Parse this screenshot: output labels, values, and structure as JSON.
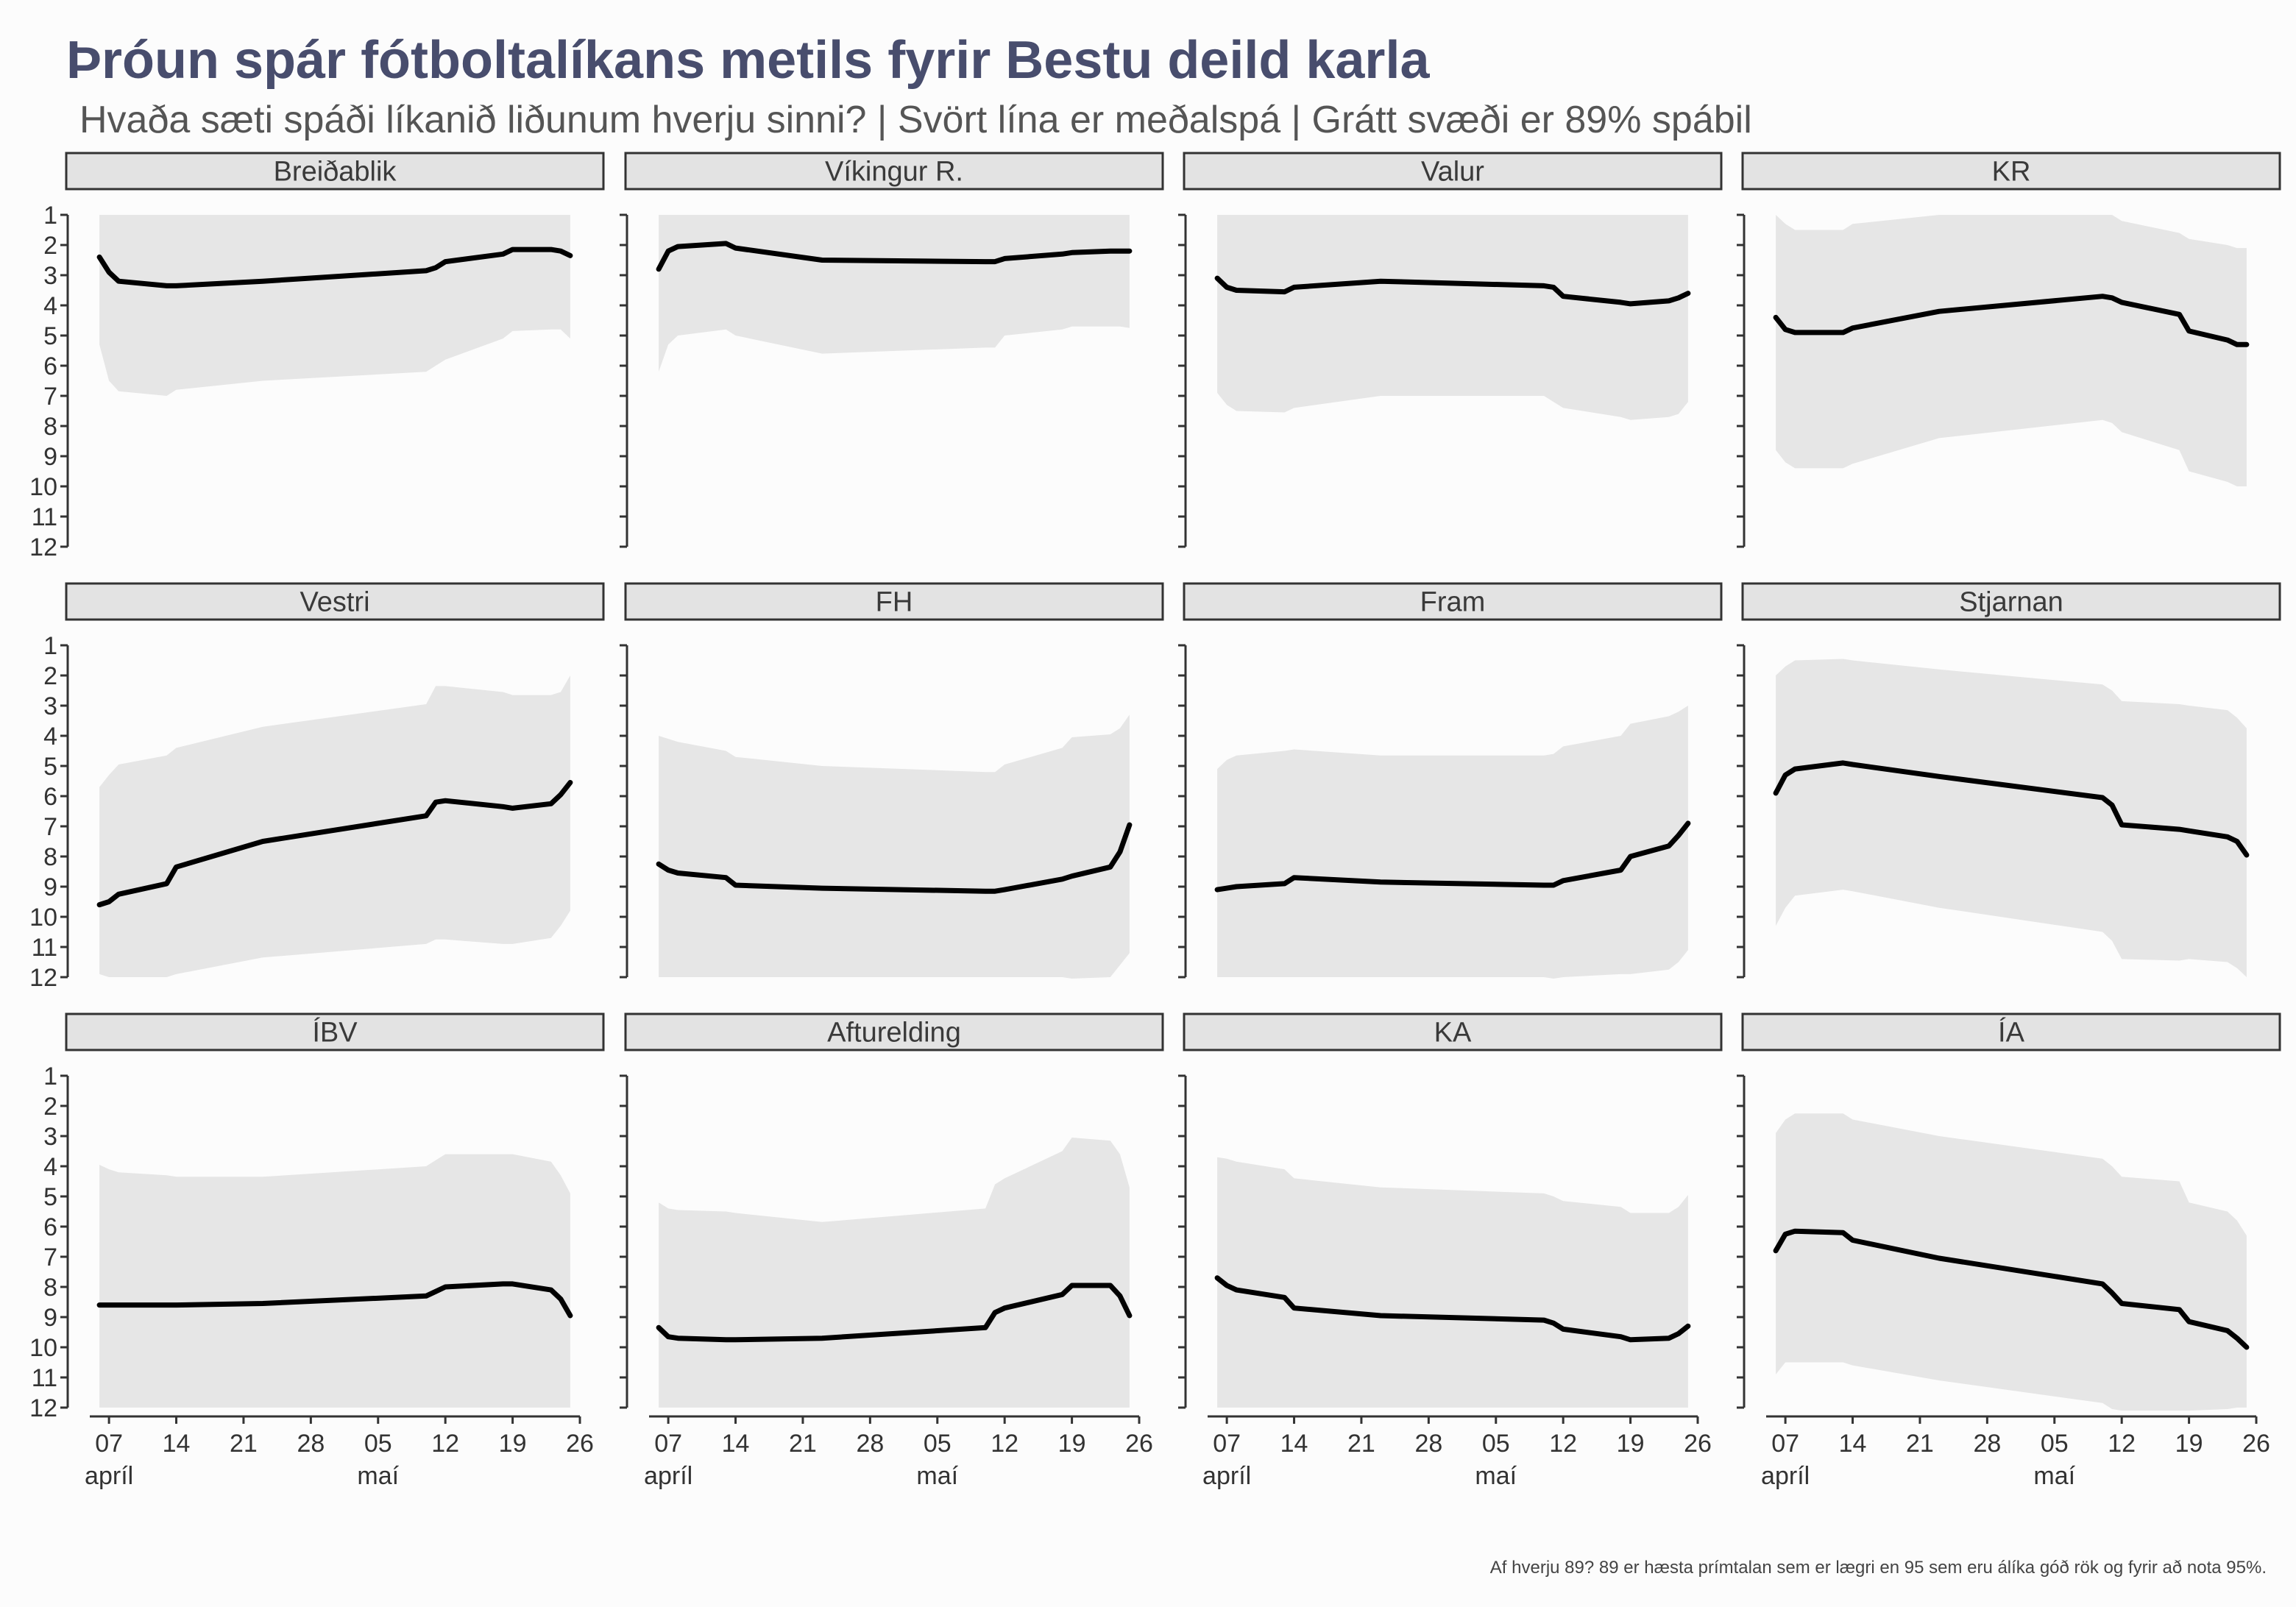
{
  "title": "Þróun spár fótboltalíkans metils fyrir Bestu deild karla",
  "subtitle": "Hvaða sæti spáði líkanið liðunum hverju sinni? | Svört lína er meðalspá | Grátt svæði er 89% spábil",
  "caption": "Af hverju 89? 89 er hæsta prímtalan sem er lægri en 95 sem eru álíka góð rök og fyrir að nota 95%.",
  "colors": {
    "band": "#e6e6e6",
    "line": "#000000",
    "title": "#484d6d",
    "strip": "#e3e3e3"
  },
  "chart_data": {
    "type": "line",
    "x_unit": "date (2024, days)",
    "y_axis": {
      "ticks": [
        "1",
        "2",
        "3",
        "4",
        "5",
        "6",
        "7",
        "8",
        "9",
        "10",
        "11",
        "12"
      ],
      "ylim": [
        12,
        1
      ],
      "reversed": true
    },
    "x_axis": {
      "xlim": [
        "2024-04-05",
        "2024-05-26"
      ],
      "ticks": [
        {
          "date": "2024-04-07",
          "label": "07"
        },
        {
          "date": "2024-04-14",
          "label": "14"
        },
        {
          "date": "2024-04-21",
          "label": "21"
        },
        {
          "date": "2024-04-28",
          "label": "28"
        },
        {
          "date": "2024-05-05",
          "label": "05"
        },
        {
          "date": "2024-05-12",
          "label": "12"
        },
        {
          "date": "2024-05-19",
          "label": "19"
        },
        {
          "date": "2024-05-26",
          "label": "26"
        }
      ],
      "month_labels": [
        {
          "date": "2024-04-07",
          "label": "apríl"
        },
        {
          "date": "2024-05-05",
          "label": "maí"
        }
      ]
    },
    "dates": [
      "2024-04-06",
      "2024-04-07",
      "2024-04-08",
      "2024-04-13",
      "2024-04-14",
      "2024-04-23",
      "2024-05-10",
      "2024-05-11",
      "2024-05-12",
      "2024-05-18",
      "2024-05-19",
      "2024-05-23",
      "2024-05-24",
      "2024-05-25"
    ],
    "panels": [
      {
        "team": "Breiðablik",
        "mean": [
          2.4,
          2.9,
          3.2,
          3.35,
          3.35,
          3.2,
          2.85,
          2.75,
          2.55,
          2.3,
          2.15,
          2.15,
          2.2,
          2.35
        ],
        "lower": [
          1,
          1,
          1,
          1,
          1,
          1,
          1,
          1,
          1,
          1,
          1,
          1,
          1,
          1
        ],
        "upper": [
          5.3,
          6.5,
          6.85,
          7.0,
          6.8,
          6.5,
          6.2,
          6.0,
          5.8,
          5.1,
          4.85,
          4.8,
          4.8,
          5.1
        ]
      },
      {
        "team": "Víkingur R.",
        "mean": [
          2.8,
          2.2,
          2.05,
          1.95,
          2.1,
          2.5,
          2.55,
          2.55,
          2.45,
          2.3,
          2.25,
          2.2,
          2.2,
          2.2
        ],
        "lower": [
          1,
          1,
          1,
          1,
          1,
          1,
          1,
          1,
          1,
          1,
          1,
          1,
          1,
          1
        ],
        "upper": [
          6.2,
          5.3,
          5.0,
          4.8,
          5.0,
          5.6,
          5.4,
          5.4,
          5.0,
          4.8,
          4.7,
          4.7,
          4.7,
          4.75
        ]
      },
      {
        "team": "Valur",
        "mean": [
          3.1,
          3.4,
          3.5,
          3.55,
          3.4,
          3.2,
          3.35,
          3.4,
          3.7,
          3.9,
          3.95,
          3.85,
          3.75,
          3.6
        ],
        "lower": [
          1,
          1,
          1,
          1,
          1,
          1,
          1,
          1,
          1,
          1,
          1,
          1,
          1,
          1
        ],
        "upper": [
          6.9,
          7.3,
          7.5,
          7.55,
          7.4,
          7.0,
          7.0,
          7.2,
          7.4,
          7.7,
          7.8,
          7.7,
          7.6,
          7.2
        ]
      },
      {
        "team": "KR",
        "mean": [
          4.4,
          4.8,
          4.9,
          4.9,
          4.75,
          4.2,
          3.7,
          3.75,
          3.9,
          4.3,
          4.85,
          5.15,
          5.3,
          5.3
        ],
        "lower": [
          1,
          1.3,
          1.5,
          1.5,
          1.3,
          1,
          1,
          1,
          1.2,
          1.6,
          1.8,
          2.0,
          2.1,
          2.1
        ],
        "upper": [
          8.8,
          9.2,
          9.4,
          9.4,
          9.25,
          8.4,
          7.8,
          7.9,
          8.2,
          8.8,
          9.5,
          9.85,
          10.0,
          10.0
        ]
      },
      {
        "team": "Vestri",
        "mean": [
          9.6,
          9.5,
          9.25,
          8.9,
          8.35,
          7.5,
          6.65,
          6.2,
          6.15,
          6.35,
          6.4,
          6.25,
          5.95,
          5.55
        ],
        "lower": [
          5.7,
          5.3,
          4.95,
          4.65,
          4.4,
          3.7,
          2.95,
          2.35,
          2.35,
          2.55,
          2.65,
          2.65,
          2.55,
          2.0
        ],
        "upper": [
          11.9,
          12.0,
          12.0,
          12.0,
          11.9,
          11.35,
          10.9,
          10.75,
          10.75,
          10.9,
          10.9,
          10.7,
          10.3,
          9.8
        ]
      },
      {
        "team": "FH",
        "mean": [
          8.25,
          8.45,
          8.55,
          8.7,
          8.95,
          9.05,
          9.15,
          9.15,
          9.1,
          8.75,
          8.65,
          8.35,
          7.85,
          6.95
        ],
        "lower": [
          4.0,
          4.1,
          4.2,
          4.5,
          4.7,
          5.0,
          5.2,
          5.2,
          4.95,
          4.4,
          4.05,
          3.95,
          3.75,
          3.3
        ],
        "upper": [
          12,
          12,
          12,
          12,
          12,
          12,
          12,
          12,
          12,
          12,
          12.05,
          12,
          11.6,
          11.2
        ]
      },
      {
        "team": "Fram",
        "mean": [
          9.1,
          9.05,
          9.0,
          8.9,
          8.7,
          8.85,
          8.95,
          8.95,
          8.8,
          8.45,
          8.0,
          7.65,
          7.3,
          6.9
        ],
        "lower": [
          5.1,
          4.8,
          4.65,
          4.5,
          4.45,
          4.65,
          4.65,
          4.6,
          4.35,
          4.0,
          3.6,
          3.35,
          3.2,
          3.0
        ],
        "upper": [
          12,
          12,
          12,
          12,
          12,
          12,
          12,
          12.05,
          12,
          11.9,
          11.9,
          11.75,
          11.5,
          11.1
        ]
      },
      {
        "team": "Stjarnan",
        "mean": [
          5.9,
          5.3,
          5.1,
          4.9,
          4.95,
          5.35,
          6.05,
          6.3,
          6.95,
          7.1,
          7.15,
          7.35,
          7.5,
          7.95
        ],
        "lower": [
          2.0,
          1.7,
          1.5,
          1.45,
          1.5,
          1.8,
          2.3,
          2.5,
          2.85,
          2.95,
          3.0,
          3.15,
          3.4,
          3.75
        ],
        "upper": [
          10.3,
          9.7,
          9.3,
          9.1,
          9.15,
          9.7,
          10.5,
          10.8,
          11.4,
          11.45,
          11.4,
          11.5,
          11.7,
          12.0
        ]
      },
      {
        "team": "ÍBV",
        "mean": [
          8.6,
          8.6,
          8.6,
          8.6,
          8.6,
          8.55,
          8.3,
          8.15,
          8.0,
          7.9,
          7.9,
          8.1,
          8.4,
          8.95
        ],
        "lower": [
          3.95,
          4.1,
          4.2,
          4.3,
          4.35,
          4.35,
          4.0,
          3.8,
          3.6,
          3.6,
          3.6,
          3.85,
          4.3,
          4.9
        ],
        "upper": [
          12,
          12,
          12,
          12,
          12,
          12,
          12,
          12,
          12,
          12,
          12,
          12,
          12,
          12
        ]
      },
      {
        "team": "Afturelding",
        "mean": [
          9.35,
          9.65,
          9.7,
          9.75,
          9.75,
          9.7,
          9.35,
          8.85,
          8.7,
          8.25,
          7.95,
          7.95,
          8.3,
          8.95
        ],
        "lower": [
          5.2,
          5.4,
          5.45,
          5.5,
          5.55,
          5.85,
          5.4,
          4.6,
          4.4,
          3.5,
          3.05,
          3.15,
          3.6,
          4.7
        ],
        "upper": [
          12,
          12,
          12,
          12,
          12,
          12,
          12,
          12,
          12,
          12,
          12,
          12,
          12,
          12
        ]
      },
      {
        "team": "KA",
        "mean": [
          7.7,
          7.95,
          8.1,
          8.35,
          8.7,
          8.95,
          9.1,
          9.2,
          9.4,
          9.65,
          9.75,
          9.7,
          9.55,
          9.3
        ],
        "lower": [
          3.7,
          3.75,
          3.85,
          4.1,
          4.4,
          4.7,
          4.9,
          5.0,
          5.15,
          5.35,
          5.55,
          5.55,
          5.35,
          4.95
        ],
        "upper": [
          12,
          12,
          12,
          12,
          12,
          12,
          12,
          12,
          12,
          12,
          12,
          12,
          12,
          12
        ]
      },
      {
        "team": "ÍA",
        "mean": [
          6.8,
          6.25,
          6.15,
          6.2,
          6.45,
          7.05,
          7.9,
          8.2,
          8.55,
          8.75,
          9.15,
          9.45,
          9.7,
          10.0
        ],
        "lower": [
          2.9,
          2.45,
          2.25,
          2.25,
          2.45,
          3.0,
          3.75,
          4.0,
          4.35,
          4.5,
          5.2,
          5.5,
          5.8,
          6.3
        ],
        "upper": [
          10.9,
          10.5,
          10.5,
          10.5,
          10.6,
          11.1,
          11.85,
          12.05,
          12.1,
          12.1,
          12.1,
          12.05,
          12,
          12
        ]
      }
    ]
  }
}
